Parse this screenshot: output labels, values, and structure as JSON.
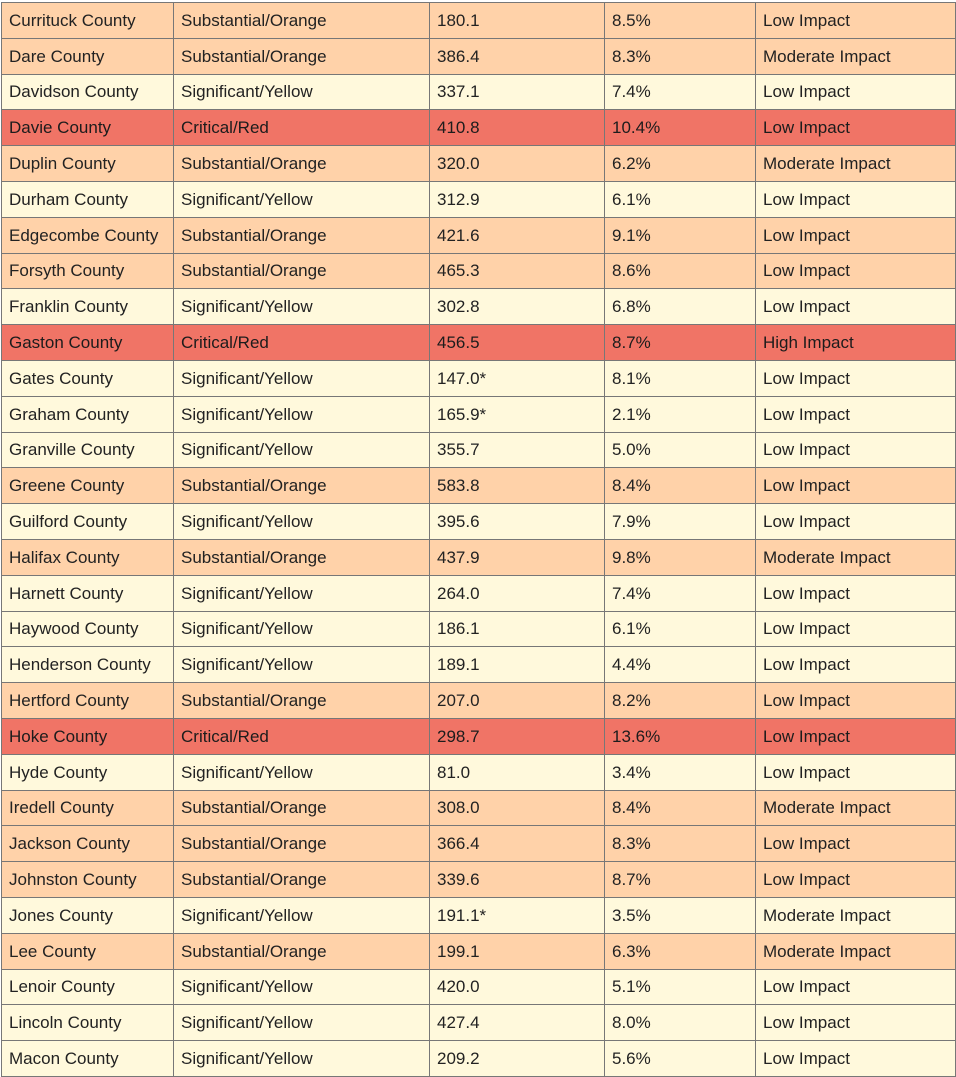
{
  "colors": {
    "Significant/Yellow": "#fff9dc",
    "Substantial/Orange": "#ffd2a9",
    "Critical/Red": "#f07466",
    "border": "#777777"
  },
  "rows": [
    {
      "county": "Currituck County",
      "level": "Substantial/Orange",
      "rate": "180.1",
      "change": "8.5%",
      "impact": "Low Impact"
    },
    {
      "county": "Dare County",
      "level": "Substantial/Orange",
      "rate": "386.4",
      "change": "8.3%",
      "impact": "Moderate Impact"
    },
    {
      "county": "Davidson County",
      "level": "Significant/Yellow",
      "rate": "337.1",
      "change": "7.4%",
      "impact": "Low Impact"
    },
    {
      "county": "Davie County",
      "level": "Critical/Red",
      "rate": "410.8",
      "change": "10.4%",
      "impact": "Low Impact"
    },
    {
      "county": "Duplin County",
      "level": "Substantial/Orange",
      "rate": "320.0",
      "change": "6.2%",
      "impact": "Moderate Impact"
    },
    {
      "county": "Durham County",
      "level": "Significant/Yellow",
      "rate": "312.9",
      "change": "6.1%",
      "impact": "Low Impact"
    },
    {
      "county": "Edgecombe County",
      "level": "Substantial/Orange",
      "rate": "421.6",
      "change": "9.1%",
      "impact": "Low Impact"
    },
    {
      "county": "Forsyth County",
      "level": "Substantial/Orange",
      "rate": "465.3",
      "change": "8.6%",
      "impact": "Low Impact"
    },
    {
      "county": "Franklin County",
      "level": "Significant/Yellow",
      "rate": "302.8",
      "change": "6.8%",
      "impact": "Low Impact"
    },
    {
      "county": "Gaston County",
      "level": "Critical/Red",
      "rate": "456.5",
      "change": "8.7%",
      "impact": "High Impact"
    },
    {
      "county": "Gates County",
      "level": "Significant/Yellow",
      "rate": "147.0*",
      "change": "8.1%",
      "impact": "Low Impact"
    },
    {
      "county": "Graham County",
      "level": "Significant/Yellow",
      "rate": "165.9*",
      "change": "2.1%",
      "impact": "Low Impact"
    },
    {
      "county": "Granville County",
      "level": "Significant/Yellow",
      "rate": "355.7",
      "change": "5.0%",
      "impact": "Low Impact"
    },
    {
      "county": "Greene County",
      "level": "Substantial/Orange",
      "rate": "583.8",
      "change": "8.4%",
      "impact": "Low Impact"
    },
    {
      "county": "Guilford County",
      "level": "Significant/Yellow",
      "rate": "395.6",
      "change": "7.9%",
      "impact": "Low Impact"
    },
    {
      "county": "Halifax County",
      "level": "Substantial/Orange",
      "rate": "437.9",
      "change": "9.8%",
      "impact": "Moderate Impact"
    },
    {
      "county": "Harnett County",
      "level": "Significant/Yellow",
      "rate": "264.0",
      "change": "7.4%",
      "impact": "Low Impact"
    },
    {
      "county": "Haywood County",
      "level": "Significant/Yellow",
      "rate": "186.1",
      "change": "6.1%",
      "impact": "Low Impact"
    },
    {
      "county": "Henderson County",
      "level": "Significant/Yellow",
      "rate": "189.1",
      "change": "4.4%",
      "impact": "Low Impact"
    },
    {
      "county": "Hertford County",
      "level": "Substantial/Orange",
      "rate": "207.0",
      "change": "8.2%",
      "impact": "Low Impact"
    },
    {
      "county": "Hoke County",
      "level": "Critical/Red",
      "rate": "298.7",
      "change": "13.6%",
      "impact": "Low Impact"
    },
    {
      "county": "Hyde County",
      "level": "Significant/Yellow",
      "rate": "81.0",
      "change": "3.4%",
      "impact": "Low Impact"
    },
    {
      "county": "Iredell County",
      "level": "Substantial/Orange",
      "rate": "308.0",
      "change": "8.4%",
      "impact": "Moderate Impact"
    },
    {
      "county": "Jackson County",
      "level": "Substantial/Orange",
      "rate": "366.4",
      "change": "8.3%",
      "impact": "Low Impact"
    },
    {
      "county": "Johnston County",
      "level": "Substantial/Orange",
      "rate": "339.6",
      "change": "8.7%",
      "impact": "Low Impact"
    },
    {
      "county": "Jones County",
      "level": "Significant/Yellow",
      "rate": "191.1*",
      "change": "3.5%",
      "impact": "Moderate Impact"
    },
    {
      "county": "Lee County",
      "level": "Substantial/Orange",
      "rate": "199.1",
      "change": "6.3%",
      "impact": "Moderate Impact"
    },
    {
      "county": "Lenoir County",
      "level": "Significant/Yellow",
      "rate": "420.0",
      "change": "5.1%",
      "impact": "Low Impact"
    },
    {
      "county": "Lincoln County",
      "level": "Significant/Yellow",
      "rate": "427.4",
      "change": "8.0%",
      "impact": "Low Impact"
    },
    {
      "county": "Macon County",
      "level": "Significant/Yellow",
      "rate": "209.2",
      "change": "5.6%",
      "impact": "Low Impact"
    }
  ]
}
